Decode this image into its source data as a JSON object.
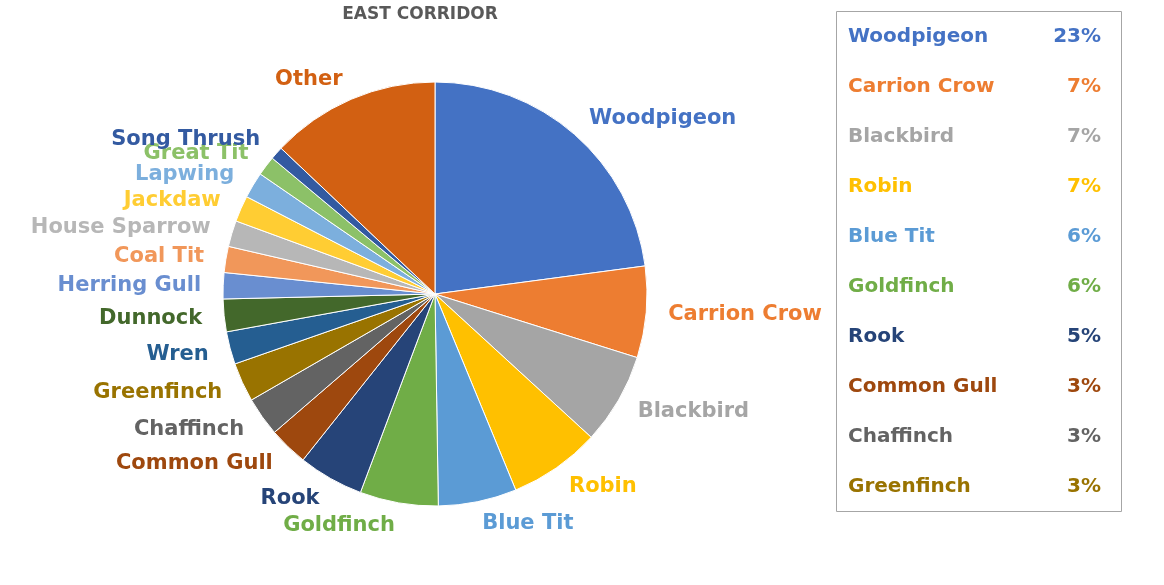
{
  "chart_data": {
    "type": "pie",
    "title": "EAST CORRIDOR",
    "categories": [
      "Woodpigeon",
      "Carrion Crow",
      "Blackbird",
      "Robin",
      "Blue Tit",
      "Goldfinch",
      "Rook",
      "Common Gull",
      "Chaffinch",
      "Greenfinch",
      "Wren",
      "Dunnock",
      "Herring Gull",
      "Coal Tit",
      "House Sparrow",
      "Jackdaw",
      "Lapwing",
      "Great Tit",
      "Song Thrush",
      "Other"
    ],
    "values": [
      23,
      7,
      7,
      7,
      6,
      6,
      5,
      3,
      3,
      3,
      2.5,
      2.5,
      2,
      2,
      2,
      2,
      2,
      1.5,
      1,
      13
    ],
    "colors": [
      "#4472c4",
      "#ed7d31",
      "#a5a5a5",
      "#ffc000",
      "#5b9bd5",
      "#70ad47",
      "#264478",
      "#9e480e",
      "#636363",
      "#997300",
      "#255e91",
      "#43682b",
      "#698ed0",
      "#f1975a",
      "#b7b7b7",
      "#ffcd33",
      "#7cafdd",
      "#8cc168",
      "#335aa1",
      "#d26012"
    ],
    "annotations": [
      "23%",
      "7%",
      "7%",
      "7%",
      "6%",
      "6%",
      "5%",
      "3%",
      "3%",
      "3%"
    ]
  }
}
